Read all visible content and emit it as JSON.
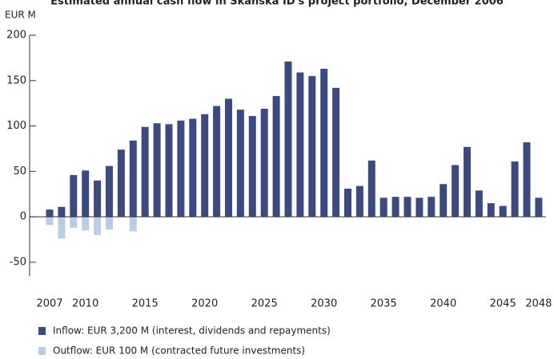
{
  "chart_data": {
    "type": "bar",
    "title": "Estimated annual cash flow in Skanska ID's project portfolio, December 2006",
    "y_label": "EUR M",
    "categories": [
      "2007",
      null,
      null,
      "2010",
      null,
      null,
      null,
      null,
      "2015",
      null,
      null,
      null,
      null,
      "2020",
      null,
      null,
      null,
      null,
      "2025",
      null,
      null,
      null,
      null,
      "2030",
      null,
      null,
      null,
      null,
      "2035",
      null,
      null,
      null,
      null,
      "2040",
      null,
      null,
      null,
      null,
      "2045",
      null,
      null,
      "2048"
    ],
    "series": [
      {
        "name": "Inflow: EUR 3,200 M (interest, dividends and repayments)",
        "color": "#3d4a7f",
        "values": [
          8,
          11,
          46,
          51,
          40,
          56,
          74,
          84,
          99,
          103,
          102,
          106,
          108,
          113,
          122,
          130,
          118,
          111,
          119,
          133,
          171,
          159,
          155,
          163,
          142,
          31,
          34,
          62,
          21,
          22,
          22,
          21,
          22,
          36,
          57,
          77,
          29,
          15,
          12,
          61,
          82,
          21
        ]
      },
      {
        "name": "Outflow: EUR 100 M (contracted future investments)",
        "color": "#b9cde8",
        "values": [
          -9,
          -24,
          -12,
          -15,
          -20,
          -14,
          null,
          -16,
          null,
          null,
          null,
          null,
          null,
          null,
          null,
          null,
          null,
          null,
          null,
          null,
          null,
          null,
          null,
          null,
          null,
          null,
          null,
          null,
          null,
          null,
          null,
          null,
          null,
          null,
          null,
          null,
          null,
          null,
          null,
          null,
          null,
          null
        ]
      }
    ],
    "ylim": [
      -65,
      200
    ],
    "yticks": [
      -50,
      0,
      50,
      100,
      150,
      200
    ]
  }
}
